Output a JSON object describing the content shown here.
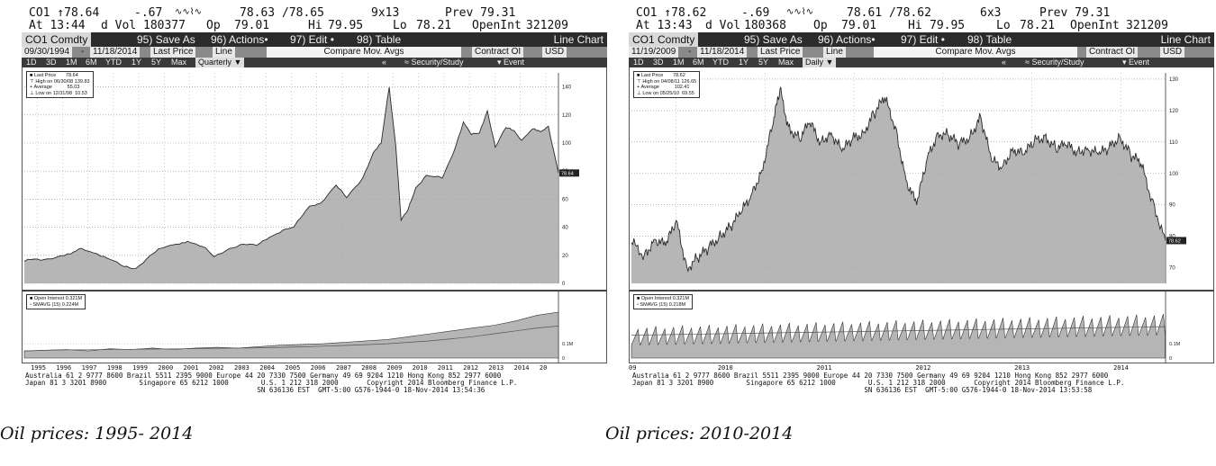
{
  "panels": [
    {
      "quote": {
        "ticker_line": "CO1 ↑78.64",
        "change": "-.67",
        "bidask": "78.63 /78.65",
        "size": "9x13",
        "prev": "Prev 79.31",
        "time": "At 13:44",
        "vol_label": "d Vol",
        "vol": "180377",
        "op_label": "Op",
        "op": "79.01",
        "hi_label": "Hi",
        "hi": "79.95",
        "lo_label": "Lo",
        "lo": "78.21",
        "oi_label": "OpenInt",
        "oi": "321209"
      },
      "menu": {
        "ticker": "CO1 Comdty",
        "save": "95) Save As",
        "actions": "96) Actions•",
        "edit": "97) Edit •",
        "table": "98) Table",
        "chart_type": "Line Chart"
      },
      "controls": {
        "start": "09/30/1994",
        "end": "11/18/2014",
        "field": "Last Price",
        "style": "Line",
        "compare": "Compare Mov. Avgs",
        "contract": "Contract OI",
        "currency": "USD"
      },
      "ranges": {
        "items": [
          "1D",
          "3D",
          "1M",
          "6M",
          "YTD",
          "1Y",
          "5Y",
          "Max"
        ],
        "period": "Quarterly ▼",
        "security": "Security/Study",
        "event": "Event"
      },
      "legend": {
        "last": "Last Price",
        "last_val": "78.64",
        "high": "High on 06/30/08",
        "high_val": "139.83",
        "avg": "Average",
        "avg_val": "55.03",
        "low": "Low on 12/31/98",
        "low_val": "10.53"
      },
      "sub_legend": {
        "oi": "Open Interest 0.321M",
        "smavg": "SMAVG (15)  0.224M"
      },
      "sub_ticks": [
        "0.1M",
        "0"
      ],
      "footer": "Australia 61 2 9777 8600 Brazil 5511 2395 9000 Europe 44 20 7330 7500 Germany 49 69 9204 1210 Hong Kong 852 2977 6000\nJapan 81 3 3201 8900        Singapore 65 6212 1000        U.S. 1 212 318 2000       Copyright 2014 Bloomberg Finance L.P.\n                                                         SN 636136 EST  GMT-5:00 G576-1944-0 18-Nov-2014 13:54:36",
      "caption": "Oil prices: 1995- 2014"
    },
    {
      "quote": {
        "ticker_line": "CO1 ↑78.62",
        "change": "-.69",
        "bidask": "78.61 /78.62",
        "size": "6x3",
        "prev": "Prev 79.31",
        "time": "At 13:43",
        "vol_label": "d Vol",
        "vol": "180368",
        "op_label": "Op",
        "op": "79.01",
        "hi_label": "Hi",
        "hi": "79.95",
        "lo_label": "Lo",
        "lo": "78.21",
        "oi_label": "OpenInt",
        "oi": "321209"
      },
      "menu": {
        "ticker": "CO1 Comdty",
        "save": "95) Save As",
        "actions": "96) Actions•",
        "edit": "97) Edit •",
        "table": "98) Table",
        "chart_type": "Line Chart"
      },
      "controls": {
        "start": "11/19/2009",
        "end": "11/18/2014",
        "field": "Last Price",
        "style": "Line",
        "compare": "Compare Mov. Avgs",
        "contract": "Contract OI",
        "currency": "USD"
      },
      "ranges": {
        "items": [
          "1D",
          "3D",
          "1M",
          "6M",
          "YTD",
          "1Y",
          "5Y",
          "Max"
        ],
        "period": "Daily ▼",
        "security": "Security/Study",
        "event": "Event"
      },
      "legend": {
        "last": "Last Price",
        "last_val": "78.62",
        "high": "High on 04/08/11",
        "high_val": "126.65",
        "avg": "Average",
        "avg_val": "102.41",
        "low": "Low on 05/25/10",
        "low_val": "69.55"
      },
      "sub_legend": {
        "oi": "Open Interest 0.321M",
        "smavg": "SMAVG (15)  0.218M"
      },
      "sub_ticks": [
        "0.1M",
        "0"
      ],
      "footer": "Australia 61 2 9777 8600 Brazil 5511 2395 9000 Europe 44 20 7330 7500 Germany 49 69 9204 1210 Hong Kong 852 2977 6000\nJapan 81 3 3201 8900        Singapore 65 6212 1000        U.S. 1 212 318 2000       Copyright 2014 Bloomberg Finance L.P.\n                                                         SN 636136 EST  GMT-5:00 G576-1944-0 18-Nov-2014 13:53:58",
      "caption": "Oil prices: 2010-2014"
    }
  ],
  "chart_data": [
    {
      "type": "area",
      "x_ticks": [
        "1995",
        "1996",
        "1997",
        "1998",
        "1999",
        "2000",
        "2001",
        "2002",
        "2003",
        "2004",
        "2005",
        "2006",
        "2007",
        "2008",
        "2009",
        "2010",
        "2011",
        "2012",
        "2013",
        "2014",
        "20"
      ],
      "y_ticks": [
        0,
        20,
        40,
        60,
        80,
        100,
        120,
        140
      ],
      "ylim": [
        0,
        150
      ],
      "last_label": "78.64",
      "x": [
        1994.75,
        1995.0,
        1995.5,
        1996.0,
        1996.5,
        1996.9,
        1997.5,
        1998.0,
        1998.5,
        1998.95,
        1999.5,
        1999.9,
        2000.5,
        2000.9,
        2001.5,
        2001.9,
        2002.5,
        2003.0,
        2003.5,
        2004.0,
        2004.5,
        2004.9,
        2005.5,
        2005.9,
        2006.5,
        2006.9,
        2007.5,
        2007.9,
        2008.2,
        2008.5,
        2008.75,
        2008.95,
        2009.2,
        2009.5,
        2009.9,
        2010.5,
        2010.9,
        2011.3,
        2011.6,
        2011.9,
        2012.2,
        2012.5,
        2012.9,
        2013.2,
        2013.5,
        2013.9,
        2014.2,
        2014.5,
        2014.88
      ],
      "values": [
        16,
        17,
        17,
        19,
        21,
        25,
        21,
        17,
        12,
        10.5,
        20,
        25,
        28,
        30,
        26,
        19,
        25,
        28,
        27,
        33,
        38,
        40,
        55,
        57,
        70,
        61,
        75,
        93,
        100,
        139.83,
        98,
        45,
        52,
        68,
        77,
        75,
        92,
        115,
        106,
        107,
        123,
        97,
        111,
        109,
        102,
        110,
        108,
        112,
        78.64
      ],
      "oi_ticks": [
        "1995",
        "2014"
      ],
      "oi_values": [
        0.05,
        0.055,
        0.06,
        0.05,
        0.065,
        0.06,
        0.07,
        0.06,
        0.07,
        0.075,
        0.07,
        0.08,
        0.09,
        0.095,
        0.1,
        0.11,
        0.12,
        0.13,
        0.15,
        0.17,
        0.19,
        0.21,
        0.23,
        0.26,
        0.3,
        0.321
      ],
      "smavg_values": [
        0.05,
        0.054,
        0.057,
        0.058,
        0.06,
        0.061,
        0.063,
        0.064,
        0.066,
        0.068,
        0.07,
        0.072,
        0.075,
        0.079,
        0.083,
        0.088,
        0.094,
        0.1,
        0.11,
        0.12,
        0.135,
        0.15,
        0.17,
        0.19,
        0.21,
        0.224
      ]
    },
    {
      "type": "area",
      "x_ticks": [
        "09",
        "2010",
        "2011",
        "2012",
        "2013",
        "2014"
      ],
      "y_ticks": [
        70,
        80,
        90,
        100,
        110,
        120,
        130
      ],
      "ylim": [
        65,
        132
      ],
      "last_label": "78.62",
      "x": [
        2009.88,
        2010.0,
        2010.1,
        2010.2,
        2010.3,
        2010.4,
        2010.5,
        2010.6,
        2010.7,
        2010.8,
        2010.9,
        2011.0,
        2011.1,
        2011.2,
        2011.27,
        2011.35,
        2011.45,
        2011.55,
        2011.65,
        2011.75,
        2011.85,
        2011.95,
        2012.05,
        2012.15,
        2012.25,
        2012.35,
        2012.45,
        2012.55,
        2012.65,
        2012.75,
        2012.85,
        2012.95,
        2013.05,
        2013.15,
        2013.25,
        2013.35,
        2013.45,
        2013.55,
        2013.65,
        2013.75,
        2013.85,
        2013.95,
        2014.05,
        2014.15,
        2014.25,
        2014.35,
        2014.45,
        2014.55,
        2014.65,
        2014.75,
        2014.88
      ],
      "values": [
        78,
        74,
        79,
        77,
        85,
        70,
        73,
        76,
        80,
        83,
        87,
        93,
        101,
        115,
        126.65,
        115,
        111,
        116,
        110,
        113,
        107,
        111,
        113,
        119,
        124,
        115,
        98,
        90,
        105,
        113,
        112,
        109,
        112,
        118,
        104,
        102,
        108,
        106,
        110,
        112,
        108,
        109,
        107,
        108,
        106,
        108,
        112,
        106,
        103,
        92,
        78.62
      ],
      "oi_ticks": [
        "2010",
        "2014"
      ],
      "oi_values": [],
      "smavg_values": []
    }
  ]
}
